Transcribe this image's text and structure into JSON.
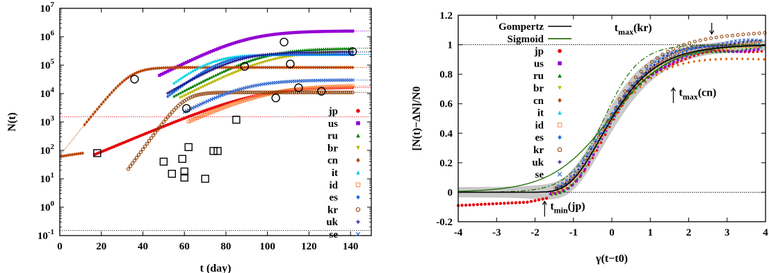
{
  "chart_data": [
    {
      "type": "scatter",
      "y_scale": "log",
      "xlim": [
        0,
        150
      ],
      "ylim": [
        0.1,
        10000000
      ],
      "xlabel": "t (day)",
      "ylabel": "N(t)",
      "xticks": [
        "0",
        "20",
        "40",
        "60",
        "80",
        "100",
        "120",
        "140"
      ],
      "yticks": [
        {
          "base": "10",
          "exp": "-1"
        },
        {
          "base": "10",
          "exp": "0"
        },
        {
          "base": "10",
          "exp": "1"
        },
        {
          "base": "10",
          "exp": "2"
        },
        {
          "base": "10",
          "exp": "3"
        },
        {
          "base": "10",
          "exp": "4"
        },
        {
          "base": "10",
          "exp": "5"
        },
        {
          "base": "10",
          "exp": "6"
        },
        {
          "base": "10",
          "exp": "7"
        }
      ],
      "grid": false,
      "legend_position": "right-middle",
      "series": [
        {
          "name": "jp",
          "color": "#e6000a",
          "marker": "dot",
          "start": 17,
          "plateau_start": 1,
          "t0": 95,
          "k": 0.07,
          "final": 17000
        },
        {
          "name": "us",
          "color": "#9400d3",
          "marker": "square",
          "start": 48,
          "plateau_start": 12,
          "t0": 90,
          "k": 0.085,
          "final": 1600000
        },
        {
          "name": "ru",
          "color": "#007f00",
          "marker": "triangle",
          "start": 55,
          "plateau_start": 2,
          "t0": 98,
          "k": 0.09,
          "final": 400000
        },
        {
          "name": "br",
          "color": "#b8b800",
          "marker": "triangle-down",
          "start": 58,
          "plateau_start": 1,
          "t0": 102,
          "k": 0.085,
          "final": 300000
        },
        {
          "name": "cn",
          "color": "#b84500",
          "marker": "diamond",
          "start": 0,
          "plateau_start": 60,
          "t0": 34,
          "k": 0.21,
          "final": 83000
        },
        {
          "name": "it",
          "color": "#00d0e0",
          "marker": "triangle",
          "start": 55,
          "plateau_start": 2,
          "t0": 72,
          "k": 0.13,
          "final": 240000
        },
        {
          "name": "id",
          "color": "#ff8844",
          "marker": "open-square",
          "start": 62,
          "plateau_start": 2,
          "t0": 100,
          "k": 0.075,
          "final": 19000
        },
        {
          "name": "es",
          "color": "#1e6fe0",
          "marker": "diamond",
          "start": 52,
          "plateau_start": 1,
          "t0": 78,
          "k": 0.13,
          "final": 240000
        },
        {
          "name": "kr",
          "color": "#8b3a00",
          "marker": "open-circle",
          "start": 33,
          "plateau_start": 2,
          "t0": 60,
          "k": 0.23,
          "final": 11000
        },
        {
          "name": "uk",
          "color": "#1a1a8c",
          "marker": "plus",
          "start": 52,
          "plateau_start": 8,
          "t0": 85,
          "k": 0.1,
          "final": 290000
        },
        {
          "name": "se",
          "color": "#3a6fd0",
          "marker": "x",
          "start": 60,
          "plateau_start": 1,
          "t0": 88,
          "k": 0.09,
          "final": 30000
        }
      ],
      "ref_lines": [
        {
          "y": 1500,
          "color": "#e6000a"
        },
        {
          "y": 0.15,
          "color": "#000000"
        }
      ],
      "circles": [
        [
          36,
          32000
        ],
        [
          61,
          3000
        ],
        [
          89,
          90000
        ],
        [
          104,
          7000
        ],
        [
          108,
          650000
        ],
        [
          111,
          110000
        ],
        [
          115,
          16000
        ],
        [
          126,
          12000
        ],
        [
          141,
          300000
        ]
      ],
      "squares": [
        [
          18,
          80
        ],
        [
          50,
          40
        ],
        [
          54,
          15
        ],
        [
          59,
          50
        ],
        [
          60,
          18
        ],
        [
          60,
          11
        ],
        [
          62,
          130
        ],
        [
          70,
          10
        ],
        [
          74,
          95
        ],
        [
          76,
          95
        ],
        [
          85,
          1200
        ]
      ]
    },
    {
      "type": "line",
      "xlim": [
        -4,
        4
      ],
      "ylim": [
        -0.2,
        1.2
      ],
      "xlabel": "γ(t−t0)",
      "ylabel": "[N(t)−ΔN]/N0",
      "xticks": [
        "-4",
        "-3",
        "-2",
        "-1",
        "0",
        "1",
        "2",
        "3",
        "4"
      ],
      "yticks": [
        "-0.2",
        "0",
        "0.2",
        "0.4",
        "0.6",
        "0.8",
        "1",
        "1.2"
      ],
      "grid": false,
      "legend_position": "top-left",
      "curves": [
        {
          "name": "Gompertz",
          "color": "#000000",
          "style": "solid"
        },
        {
          "name": "Sigmoid",
          "color": "#1a6b00",
          "style": "solid"
        }
      ],
      "series_names": [
        "jp",
        "us",
        "ru",
        "br",
        "cn",
        "it",
        "id",
        "es",
        "kr",
        "uk",
        "se"
      ],
      "annotations": [
        {
          "main": "t",
          "sub": "max",
          "tail": "(kr)",
          "arrow": "down",
          "x": 2.6,
          "y": 1.12
        },
        {
          "main": "t",
          "sub": "max",
          "tail": "(cn)",
          "arrow": "up",
          "x": 1.6,
          "y": 0.68
        },
        {
          "main": "t",
          "sub": "min",
          "tail": "(jp)",
          "arrow": "up",
          "x": -1.75,
          "y": -0.09
        }
      ]
    }
  ]
}
